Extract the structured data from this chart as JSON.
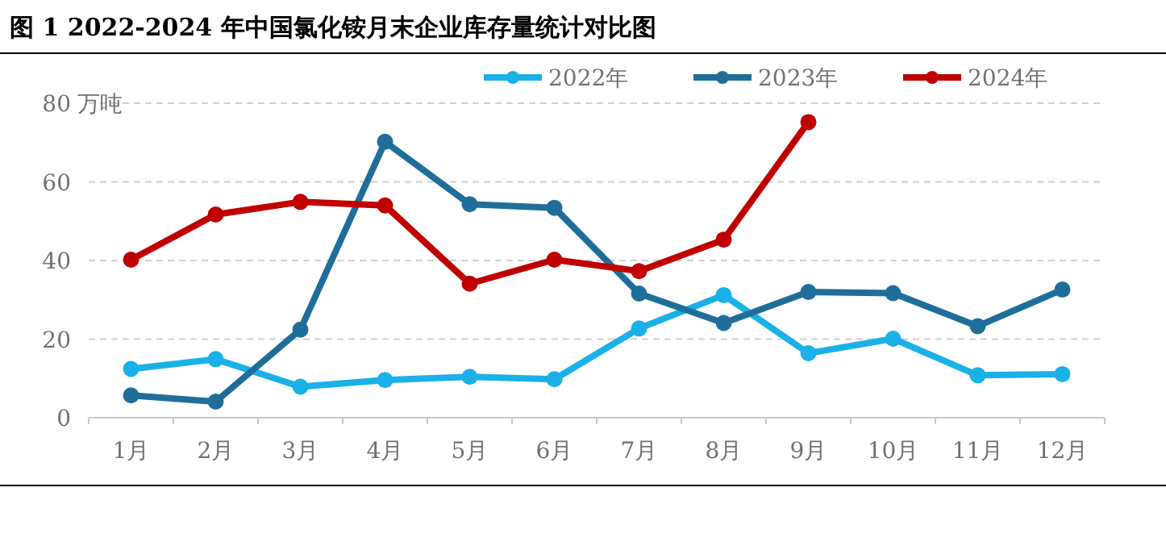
{
  "chart_data": {
    "type": "line",
    "title": "图 1 2022-2024 年中国氯化铵月末企业库存量统计对比图",
    "ylabel": "万吨",
    "categories": [
      "1月",
      "2月",
      "3月",
      "4月",
      "5月",
      "6月",
      "7月",
      "8月",
      "9月",
      "10月",
      "11月",
      "12月"
    ],
    "series": [
      {
        "name": "2022年",
        "color": "#1ab0e8",
        "values": [
          12.4,
          14.9,
          7.9,
          9.6,
          10.4,
          9.8,
          22.7,
          31.2,
          16.4,
          20.1,
          10.8,
          11.1
        ]
      },
      {
        "name": "2023年",
        "color": "#1f6e9a",
        "values": [
          5.7,
          4.1,
          22.4,
          70.2,
          54.3,
          53.4,
          31.6,
          24.1,
          32,
          31.7,
          23.3,
          32.6
        ]
      },
      {
        "name": "2024年",
        "color": "#c00000",
        "values": [
          40.2,
          51.7,
          54.9,
          54,
          34.1,
          40.2,
          37.3,
          45.3,
          75.2,
          null,
          null,
          null
        ]
      }
    ],
    "ylim": [
      0,
      80
    ],
    "yticks": [
      0,
      20,
      40,
      60,
      80
    ],
    "grid": "y",
    "legend": "top",
    "marker": "circle",
    "line_style": "solid"
  }
}
